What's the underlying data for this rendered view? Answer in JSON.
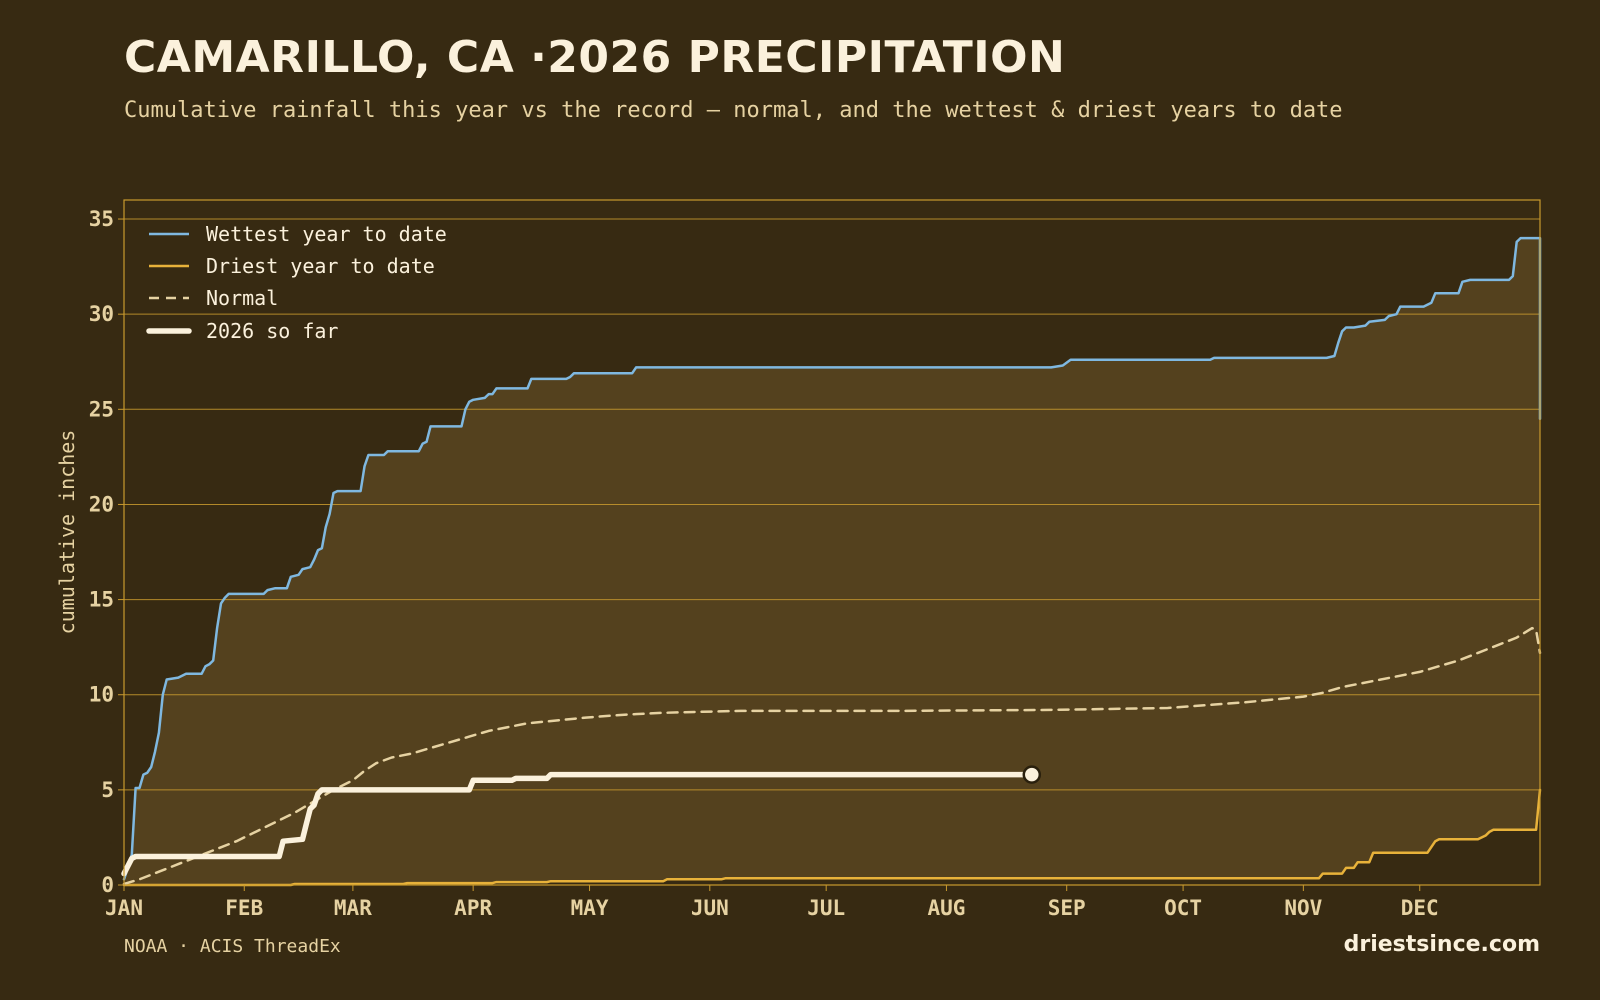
{
  "header": {
    "title": "CAMARILLO, CA ·2026 PRECIPITATION",
    "subtitle": "Cumulative rainfall this year vs the record — normal, and the wettest & driest years to date"
  },
  "footer": {
    "source": "NOAA · ACIS ThreadEx",
    "brand": "driestsince.com"
  },
  "colors": {
    "background": "#372a12",
    "band_fill": "#54411e",
    "grid": "#c99a2e",
    "wettest": "#7fb8e0",
    "driest": "#e8b23a",
    "normal": "#e6d2a2",
    "current": "#fbf1dc"
  },
  "chart_data": {
    "type": "line",
    "title": "CAMARILLO, CA ·2026 PRECIPITATION",
    "subtitle": "Cumulative rainfall this year vs the record — normal, and the wettest & driest years to date",
    "xlabel": "",
    "ylabel": "cumulative inches",
    "x_unit": "day of year",
    "xlim": [
      1,
      366
    ],
    "ylim": [
      0,
      36
    ],
    "yticks": [
      0,
      5,
      10,
      15,
      20,
      25,
      30,
      35
    ],
    "month_ticks": [
      {
        "label": "JAN",
        "day": 1
      },
      {
        "label": "FEB",
        "day": 32
      },
      {
        "label": "MAR",
        "day": 60
      },
      {
        "label": "APR",
        "day": 91
      },
      {
        "label": "MAY",
        "day": 121
      },
      {
        "label": "JUN",
        "day": 152
      },
      {
        "label": "JUL",
        "day": 182
      },
      {
        "label": "AUG",
        "day": 213
      },
      {
        "label": "SEP",
        "day": 244
      },
      {
        "label": "OCT",
        "day": 274
      },
      {
        "label": "NOV",
        "day": 305
      },
      {
        "label": "DEC",
        "day": 335
      }
    ],
    "grid": true,
    "legend_position": "top-left",
    "series": [
      {
        "name": "Wettest year to date",
        "style": "solid",
        "points": [
          [
            1,
            0.3
          ],
          [
            2,
            0.9
          ],
          [
            3,
            1.6
          ],
          [
            4,
            5.1
          ],
          [
            5,
            5.1
          ],
          [
            6,
            5.8
          ],
          [
            7,
            5.9
          ],
          [
            8,
            6.2
          ],
          [
            9,
            7.0
          ],
          [
            10,
            8.0
          ],
          [
            11,
            10.0
          ],
          [
            12,
            10.8
          ],
          [
            15,
            10.9
          ],
          [
            17,
            11.1
          ],
          [
            19,
            11.1
          ],
          [
            21,
            11.1
          ],
          [
            22,
            11.5
          ],
          [
            23,
            11.6
          ],
          [
            24,
            11.8
          ],
          [
            25,
            13.5
          ],
          [
            26,
            14.8
          ],
          [
            27,
            15.1
          ],
          [
            28,
            15.3
          ],
          [
            36,
            15.3
          ],
          [
            37,
            15.3
          ],
          [
            38,
            15.5
          ],
          [
            40,
            15.6
          ],
          [
            43,
            15.6
          ],
          [
            44,
            16.2
          ],
          [
            46,
            16.3
          ],
          [
            47,
            16.6
          ],
          [
            49,
            16.7
          ],
          [
            50,
            17.1
          ],
          [
            51,
            17.6
          ],
          [
            52,
            17.7
          ],
          [
            53,
            18.8
          ],
          [
            54,
            19.5
          ],
          [
            55,
            20.6
          ],
          [
            56,
            20.7
          ],
          [
            62,
            20.7
          ],
          [
            63,
            22.0
          ],
          [
            64,
            22.6
          ],
          [
            68,
            22.6
          ],
          [
            69,
            22.8
          ],
          [
            77,
            22.8
          ],
          [
            78,
            23.2
          ],
          [
            79,
            23.3
          ],
          [
            80,
            24.1
          ],
          [
            88,
            24.1
          ],
          [
            89,
            25.0
          ],
          [
            90,
            25.4
          ],
          [
            91,
            25.5
          ],
          [
            94,
            25.6
          ],
          [
            95,
            25.8
          ],
          [
            96,
            25.8
          ],
          [
            97,
            26.1
          ],
          [
            105,
            26.1
          ],
          [
            106,
            26.6
          ],
          [
            115,
            26.6
          ],
          [
            116,
            26.7
          ],
          [
            117,
            26.9
          ],
          [
            123,
            26.9
          ],
          [
            124,
            26.9
          ],
          [
            132,
            26.9
          ],
          [
            133,
            27.2
          ],
          [
            240,
            27.2
          ],
          [
            243,
            27.3
          ],
          [
            245,
            27.6
          ],
          [
            281,
            27.6
          ],
          [
            282,
            27.7
          ],
          [
            310,
            27.7
          ],
          [
            311,
            27.7
          ],
          [
            313,
            27.8
          ],
          [
            314,
            28.5
          ],
          [
            315,
            29.1
          ],
          [
            316,
            29.3
          ],
          [
            318,
            29.3
          ],
          [
            321,
            29.4
          ],
          [
            322,
            29.6
          ],
          [
            326,
            29.7
          ],
          [
            327,
            29.9
          ],
          [
            329,
            30.0
          ],
          [
            330,
            30.4
          ],
          [
            336,
            30.4
          ],
          [
            338,
            30.6
          ],
          [
            339,
            31.1
          ],
          [
            345,
            31.1
          ],
          [
            346,
            31.7
          ],
          [
            348,
            31.8
          ],
          [
            358,
            31.8
          ],
          [
            359,
            32.0
          ],
          [
            360,
            33.8
          ],
          [
            361,
            34.0
          ],
          [
            366,
            34.0
          ],
          [
            366,
            24.5
          ]
        ]
      },
      {
        "name": "Driest year to date",
        "style": "solid",
        "points": [
          [
            1,
            0.0
          ],
          [
            44,
            0.0
          ],
          [
            45,
            0.05
          ],
          [
            73,
            0.05
          ],
          [
            74,
            0.1
          ],
          [
            96,
            0.1
          ],
          [
            97,
            0.15
          ],
          [
            110,
            0.15
          ],
          [
            111,
            0.2
          ],
          [
            140,
            0.2
          ],
          [
            141,
            0.3
          ],
          [
            155,
            0.3
          ],
          [
            156,
            0.35
          ],
          [
            309,
            0.35
          ],
          [
            310,
            0.6
          ],
          [
            315,
            0.6
          ],
          [
            316,
            0.9
          ],
          [
            318,
            0.9
          ],
          [
            319,
            1.2
          ],
          [
            322,
            1.2
          ],
          [
            323,
            1.7
          ],
          [
            337,
            1.7
          ],
          [
            338,
            2.0
          ],
          [
            339,
            2.3
          ],
          [
            340,
            2.4
          ],
          [
            350,
            2.4
          ],
          [
            351,
            2.5
          ],
          [
            352,
            2.6
          ],
          [
            353,
            2.8
          ],
          [
            354,
            2.9
          ],
          [
            365,
            2.9
          ],
          [
            366,
            5.0
          ]
        ]
      },
      {
        "name": "Normal",
        "style": "dashed",
        "points": [
          [
            1,
            0.05
          ],
          [
            5,
            0.3
          ],
          [
            10,
            0.7
          ],
          [
            15,
            1.1
          ],
          [
            20,
            1.5
          ],
          [
            25,
            1.9
          ],
          [
            30,
            2.3
          ],
          [
            35,
            2.8
          ],
          [
            40,
            3.3
          ],
          [
            45,
            3.8
          ],
          [
            50,
            4.4
          ],
          [
            55,
            5.0
          ],
          [
            60,
            5.5
          ],
          [
            63,
            6.0
          ],
          [
            66,
            6.4
          ],
          [
            70,
            6.7
          ],
          [
            75,
            6.9
          ],
          [
            80,
            7.2
          ],
          [
            85,
            7.5
          ],
          [
            90,
            7.8
          ],
          [
            95,
            8.1
          ],
          [
            100,
            8.3
          ],
          [
            105,
            8.5
          ],
          [
            110,
            8.6
          ],
          [
            115,
            8.7
          ],
          [
            120,
            8.8
          ],
          [
            130,
            8.95
          ],
          [
            140,
            9.05
          ],
          [
            150,
            9.1
          ],
          [
            160,
            9.15
          ],
          [
            200,
            9.15
          ],
          [
            240,
            9.2
          ],
          [
            270,
            9.3
          ],
          [
            290,
            9.6
          ],
          [
            300,
            9.8
          ],
          [
            305,
            9.9
          ],
          [
            310,
            10.1
          ],
          [
            315,
            10.4
          ],
          [
            320,
            10.6
          ],
          [
            325,
            10.8
          ],
          [
            330,
            11.0
          ],
          [
            335,
            11.2
          ],
          [
            340,
            11.5
          ],
          [
            345,
            11.8
          ],
          [
            350,
            12.2
          ],
          [
            355,
            12.6
          ],
          [
            360,
            13.0
          ],
          [
            364,
            13.5
          ],
          [
            365,
            13.4
          ],
          [
            366,
            12.2
          ]
        ]
      },
      {
        "name": "2026 so far",
        "style": "thick",
        "points": [
          [
            1,
            0.6
          ],
          [
            2,
            1.0
          ],
          [
            3,
            1.4
          ],
          [
            4,
            1.5
          ],
          [
            41,
            1.5
          ],
          [
            42,
            2.3
          ],
          [
            47,
            2.4
          ],
          [
            48,
            3.2
          ],
          [
            49,
            4.0
          ],
          [
            50,
            4.2
          ],
          [
            51,
            4.8
          ],
          [
            52,
            5.0
          ],
          [
            90,
            5.0
          ],
          [
            91,
            5.5
          ],
          [
            101,
            5.5
          ],
          [
            102,
            5.6
          ],
          [
            110,
            5.6
          ],
          [
            111,
            5.8
          ],
          [
            235,
            5.8
          ]
        ]
      }
    ],
    "current_marker": {
      "day": 235,
      "value": 5.8
    }
  }
}
